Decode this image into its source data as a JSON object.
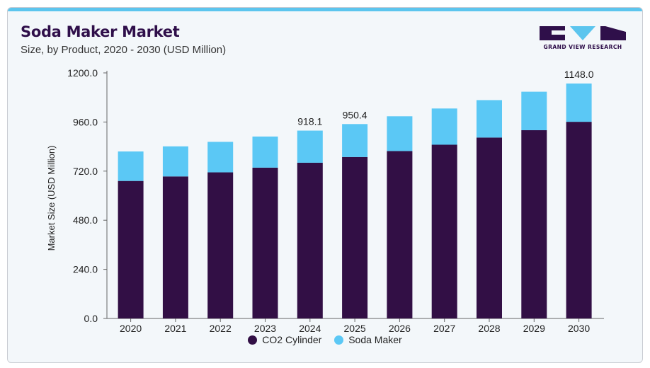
{
  "header": {
    "title": "Soda Maker Market",
    "subtitle": "Size, by Product, 2020 - 2030 (USD Million)"
  },
  "brand": {
    "name": "GRAND VIEW RESEARCH",
    "colors": {
      "dark": "#2f0f4a",
      "accent": "#5cc5ee"
    }
  },
  "chart_data": {
    "type": "bar",
    "stacked": true,
    "title": "Soda Maker Market",
    "ylabel": "Market Size (USD Million)",
    "xlabel": "",
    "ylim": [
      0,
      1200
    ],
    "yticks": [
      "0.0",
      "240.0",
      "480.0",
      "720.0",
      "960.0",
      "1200.0"
    ],
    "grid": false,
    "legend_position": "bottom-center",
    "categories": [
      "2020",
      "2021",
      "2022",
      "2023",
      "2024",
      "2025",
      "2026",
      "2027",
      "2028",
      "2029",
      "2030"
    ],
    "series": [
      {
        "name": "CO2 Cylinder",
        "color": "#320f45",
        "values": [
          672,
          694,
          714,
          737,
          761,
          789,
          818,
          849,
          884,
          920,
          961
        ]
      },
      {
        "name": "Soda Maker",
        "color": "#5bc8f5",
        "values": [
          144,
          147,
          149,
          152,
          157,
          161,
          170,
          177,
          183,
          188,
          187
        ]
      }
    ],
    "data_labels": [
      {
        "category": "2024",
        "text": "918.1"
      },
      {
        "category": "2025",
        "text": "950.4"
      },
      {
        "category": "2030",
        "text": "1148.0"
      }
    ]
  }
}
